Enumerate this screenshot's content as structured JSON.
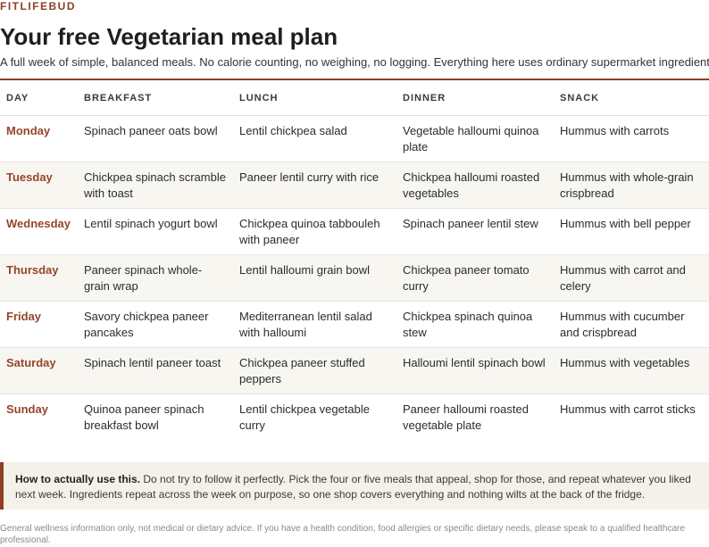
{
  "brand": "FITLIFEBUD",
  "title": "Your free Vegetarian meal plan",
  "subtitle": "A full week of simple, balanced meals. No calorie counting, no weighing, no logging. Everything here uses ordinary supermarket ingredients.",
  "table": {
    "headers": [
      "DAY",
      "BREAKFAST",
      "LUNCH",
      "DINNER",
      "SNACK"
    ],
    "rows": [
      {
        "day": "Monday",
        "breakfast": "Spinach paneer oats bowl",
        "lunch": "Lentil chickpea salad",
        "dinner": "Vegetable halloumi quinoa plate",
        "snack": "Hummus with carrots"
      },
      {
        "day": "Tuesday",
        "breakfast": "Chickpea spinach scramble with toast",
        "lunch": "Paneer lentil curry with rice",
        "dinner": "Chickpea halloumi roasted vegetables",
        "snack": "Hummus with whole-grain crispbread"
      },
      {
        "day": "Wednesday",
        "breakfast": "Lentil spinach yogurt bowl",
        "lunch": "Chickpea quinoa tabbouleh with paneer",
        "dinner": "Spinach paneer lentil stew",
        "snack": "Hummus with bell pepper"
      },
      {
        "day": "Thursday",
        "breakfast": "Paneer spinach whole-grain wrap",
        "lunch": "Lentil halloumi grain bowl",
        "dinner": "Chickpea paneer tomato curry",
        "snack": "Hummus with carrot and celery"
      },
      {
        "day": "Friday",
        "breakfast": "Savory chickpea paneer pancakes",
        "lunch": "Mediterranean lentil salad with halloumi",
        "dinner": "Chickpea spinach quinoa stew",
        "snack": "Hummus with cucumber and crispbread"
      },
      {
        "day": "Saturday",
        "breakfast": "Spinach lentil paneer toast",
        "lunch": "Chickpea paneer stuffed peppers",
        "dinner": "Halloumi lentil spinach bowl",
        "snack": "Hummus with vegetables"
      },
      {
        "day": "Sunday",
        "breakfast": "Quinoa paneer spinach breakfast bowl",
        "lunch": "Lentil chickpea vegetable curry",
        "dinner": "Paneer halloumi roasted vegetable plate",
        "snack": "Hummus with carrot sticks"
      }
    ]
  },
  "note": {
    "heading": "How to actually use this.",
    "text": "Do not try to follow it perfectly. Pick the four or five meals that appeal, shop for those, and repeat whatever you liked next week. Ingredients repeat across the week on purpose, so one shop covers everything and nothing wilts at the back of the fridge."
  },
  "disclaimer": "General wellness information only, not medical or dietary advice. If you have a health condition, food allergies or specific dietary needs, please speak to a qualified healthcare professional.",
  "colors": {
    "accent": "#8e3f24",
    "day_text": "#96452a",
    "row_alt": "#f8f6f1",
    "note_bg": "#f4f1ea"
  }
}
